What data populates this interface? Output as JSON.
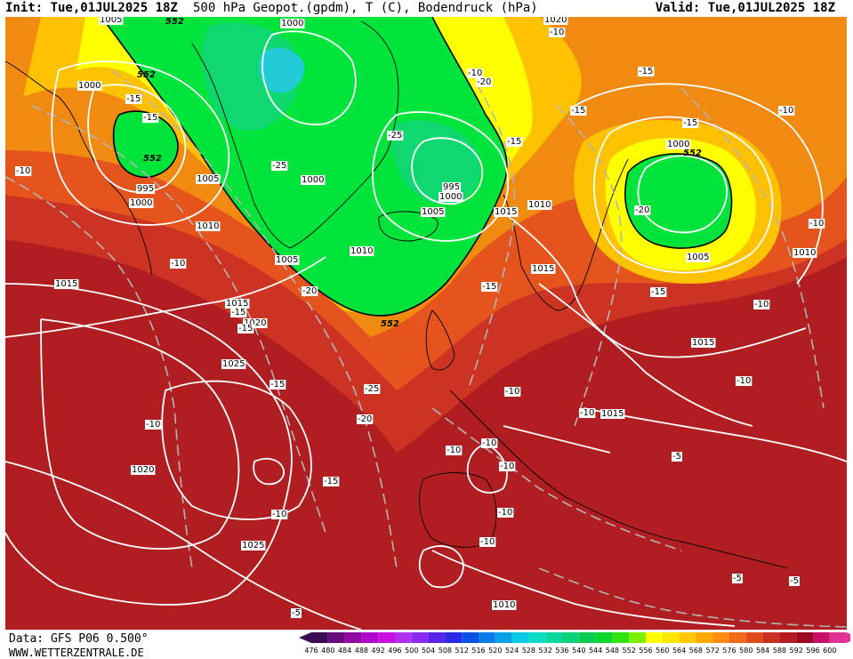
{
  "header": {
    "init": "Init: Tue,01JUL2025 18Z",
    "title": "500 hPa Geopot.(gpdm), T (C), Bodendruck (hPa)",
    "valid": "Valid: Tue,01JUL2025 18Z"
  },
  "footer": {
    "data_source": "Data: GFS P06 0.500°",
    "website": "WWW.WETTERZENTRALE.DE"
  },
  "colors": {
    "geo_552_556": "#00e43c",
    "geo_below_552": "#00d27a",
    "geo_cyan": "#22ccd6",
    "geo_556_564": "#ffff00",
    "geo_564_572": "#ffc200",
    "geo_572_580": "#f08a10",
    "geo_580_584": "#e6541e",
    "geo_584_588": "#cc3322",
    "geo_588_592": "#b01e22",
    "isobar": "#ffffff",
    "isotherm": "#b4b4b4",
    "coastline": "#000000"
  },
  "color_scale": {
    "labels": [
      "476",
      "480",
      "484",
      "488",
      "492",
      "496",
      "500",
      "504",
      "508",
      "512",
      "516",
      "520",
      "524",
      "528",
      "532",
      "536",
      "540",
      "544",
      "548",
      "552",
      "556",
      "560",
      "564",
      "568",
      "572",
      "576",
      "580",
      "584",
      "588",
      "592",
      "596",
      "600"
    ],
    "colors": [
      "#3a0a52",
      "#6a0a7a",
      "#8e0aa0",
      "#b00ac8",
      "#cc10e0",
      "#b030f0",
      "#8a2cf0",
      "#5a22e6",
      "#2a2ae6",
      "#0a50e6",
      "#0a7ae6",
      "#0aa0e6",
      "#0ac8e6",
      "#0adcc8",
      "#0ad6a0",
      "#0ad278",
      "#0acc50",
      "#0ad830",
      "#30e410",
      "#7af000",
      "#ffff00",
      "#ffe400",
      "#ffc800",
      "#ffaa00",
      "#ff8c10",
      "#f06a1a",
      "#e04a1a",
      "#cc3020",
      "#b41c20",
      "#9a0a20",
      "#c8106a",
      "#e03296"
    ]
  },
  "map_labels": {
    "geopotential": [
      {
        "text": "552"
      },
      {
        "text": "552"
      },
      {
        "text": "552"
      },
      {
        "text": "552"
      },
      {
        "text": "552"
      }
    ],
    "pressure": [
      {
        "text": "1005"
      },
      {
        "text": "1000"
      },
      {
        "text": "1020"
      },
      {
        "text": "1000"
      },
      {
        "text": "995"
      },
      {
        "text": "1000"
      },
      {
        "text": "1005"
      },
      {
        "text": "1000"
      },
      {
        "text": "995"
      },
      {
        "text": "1000"
      },
      {
        "text": "1005"
      },
      {
        "text": "1015"
      },
      {
        "text": "1010"
      },
      {
        "text": "1010"
      },
      {
        "text": "1005"
      },
      {
        "text": "1010"
      },
      {
        "text": "1000"
      },
      {
        "text": "1015"
      },
      {
        "text": "1005"
      },
      {
        "text": "1010"
      },
      {
        "text": "1015"
      },
      {
        "text": "1015"
      },
      {
        "text": "1020"
      },
      {
        "text": "1015"
      },
      {
        "text": "1025"
      },
      {
        "text": "1015"
      },
      {
        "text": "1020"
      },
      {
        "text": "1025"
      },
      {
        "text": "1010"
      }
    ],
    "temperature": [
      {
        "text": "-15"
      },
      {
        "text": "-15"
      },
      {
        "text": "-10"
      },
      {
        "text": "-20"
      },
      {
        "text": "-25"
      },
      {
        "text": "-25"
      },
      {
        "text": "-15"
      },
      {
        "text": "-15"
      },
      {
        "text": "-15"
      },
      {
        "text": "-15"
      },
      {
        "text": "-10"
      },
      {
        "text": "-20"
      },
      {
        "text": "-10"
      },
      {
        "text": "-10"
      },
      {
        "text": "-20"
      },
      {
        "text": "-15"
      },
      {
        "text": "-15"
      },
      {
        "text": "-15"
      },
      {
        "text": "-10"
      },
      {
        "text": "-15"
      },
      {
        "text": "-25"
      },
      {
        "text": "-20"
      },
      {
        "text": "-10"
      },
      {
        "text": "-10"
      },
      {
        "text": "-10"
      },
      {
        "text": "-10"
      },
      {
        "text": "-10"
      },
      {
        "text": "-10"
      },
      {
        "text": "-10"
      },
      {
        "text": "-15"
      },
      {
        "text": "-10"
      },
      {
        "text": "-10"
      },
      {
        "text": "-10"
      },
      {
        "text": "-5"
      },
      {
        "text": "-5"
      },
      {
        "text": "-5"
      },
      {
        "text": "-5"
      },
      {
        "text": "-10"
      },
      {
        "text": "-10"
      },
      {
        "text": "-15"
      }
    ]
  }
}
